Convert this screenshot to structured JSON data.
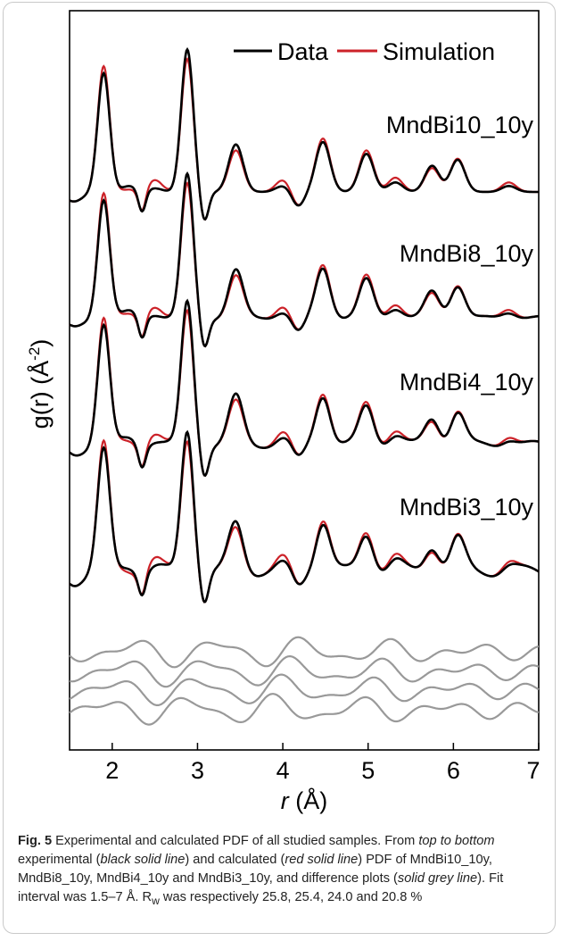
{
  "chart_data": {
    "type": "line",
    "xlabel_prefix": "r",
    "xlabel_unit": "(Å)",
    "ylabel_main": "g(r) (Å",
    "ylabel_sup": "-2",
    "ylabel_close": ")",
    "xlim": [
      1.5,
      7.0
    ],
    "x_ticks": [
      2,
      3,
      4,
      5,
      6,
      7
    ],
    "y_ticks_shown": false,
    "grid": false,
    "legend": {
      "placement": "top-right",
      "entries": [
        {
          "label": "Data",
          "color": "#000000"
        },
        {
          "label": "Simulation",
          "color": "#cc2229"
        }
      ]
    },
    "panels": [
      {
        "name": "MndBi10_10y"
      },
      {
        "name": "MndBi8_10y"
      },
      {
        "name": "MndBi4_10y"
      },
      {
        "name": "MndBi3_10y"
      }
    ],
    "peak_positions": [
      {
        "r": 1.9,
        "data": 1.0,
        "sim": 1.06
      },
      {
        "r": 2.2,
        "data": 0.05,
        "sim": 0.02
      },
      {
        "r": 2.5,
        "data": 0.03,
        "sim": 0.1
      },
      {
        "r": 2.88,
        "data": 1.2,
        "sim": 1.12
      },
      {
        "r": 3.45,
        "data": 0.4,
        "sim": 0.35
      },
      {
        "r": 4.0,
        "data": 0.05,
        "sim": 0.1
      },
      {
        "r": 4.47,
        "data": 0.42,
        "sim": 0.45
      },
      {
        "r": 4.98,
        "data": 0.32,
        "sim": 0.35
      },
      {
        "r": 5.32,
        "data": 0.08,
        "sim": 0.12
      },
      {
        "r": 5.75,
        "data": 0.22,
        "sim": 0.2
      },
      {
        "r": 6.05,
        "data": 0.27,
        "sim": 0.28
      },
      {
        "r": 6.65,
        "data": 0.05,
        "sim": 0.08
      }
    ],
    "difference_curves": 4
  },
  "caption": {
    "label": "Fig. 5",
    "text_1": "  Experimental and calculated PDF of all studied samples. From ",
    "em_1": "top to bottom",
    "text_2": " experimental (",
    "em_2": "black solid line",
    "text_3": ") and calculated (",
    "em_3": "red solid line",
    "text_4": ") PDF of MndBi10_10y, MndBi8_10y, MndBi4_10y and MndBi3_10y, and difference plots (",
    "em_4": "solid grey line",
    "text_5": "). Fit interval was 1.5–7 Å. R",
    "sub": "w",
    "text_6": " was respectively 25.8, 25.4, 24.0 and 20.8 %"
  },
  "colors": {
    "data": "#000000",
    "sim": "#cc2229",
    "diff": "#999999"
  }
}
